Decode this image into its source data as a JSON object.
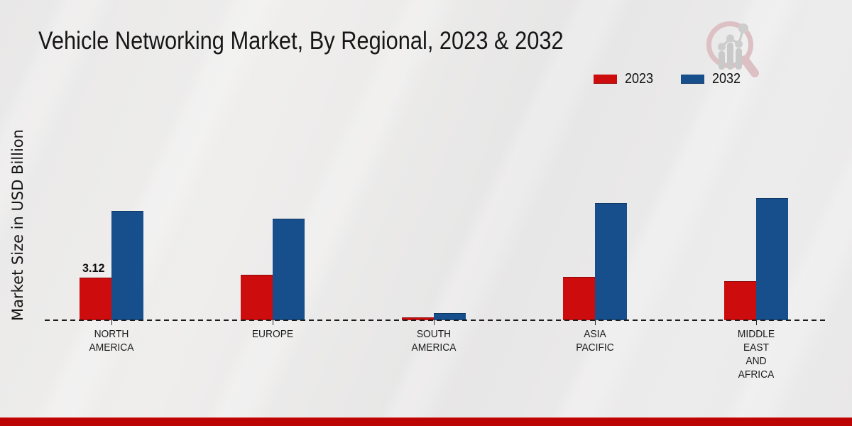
{
  "title": "Vehicle Networking Market, By Regional, 2023 & 2032",
  "y_axis_label": "Market Size in USD Billion",
  "legend": {
    "position": "top-right",
    "items": [
      {
        "label": "2023",
        "color": "#cc0c0d"
      },
      {
        "label": "2032",
        "color": "#164f8c"
      }
    ]
  },
  "chart_data": {
    "type": "bar",
    "title": "Vehicle Networking Market, By Regional, 2023 & 2032",
    "xlabel": "",
    "ylabel": "Market Size in USD Billion",
    "categories": [
      "NORTH AMERICA",
      "EUROPE",
      "SOUTH AMERICA",
      "ASIA PACIFIC",
      "MIDDLE EAST AND AFRICA"
    ],
    "category_label_lines": [
      [
        "NORTH",
        "AMERICA"
      ],
      [
        "EUROPE"
      ],
      [
        "SOUTH",
        "AMERICA"
      ],
      [
        "ASIA",
        "PACIFIC"
      ],
      [
        "MIDDLE",
        "EAST",
        "AND",
        "AFRICA"
      ]
    ],
    "series": [
      {
        "name": "2023",
        "color": "#cc0c0d",
        "values": [
          3.12,
          3.29,
          0.19,
          3.14,
          2.86
        ]
      },
      {
        "name": "2032",
        "color": "#164f8c",
        "values": [
          7.95,
          7.41,
          0.52,
          8.52,
          8.91
        ]
      }
    ],
    "bar_labels": [
      {
        "series_index": 0,
        "category_index": 0,
        "text": "3.12"
      }
    ],
    "baseline_value": 0,
    "ylim": [
      0,
      9.5
    ],
    "grid": false,
    "x_axis_style": "dashed",
    "y_ticks_visible": false,
    "legend_position": "top-right"
  },
  "watermark": {
    "icon": "magnifier-growth-chart-icon"
  },
  "footer": {
    "accent_bar_color": "#bc0404"
  },
  "colors": {
    "background": "#e9e8e8",
    "series_2023": "#cc0c0d",
    "series_2032": "#164f8c",
    "axis": "#1c1c1c",
    "text": "#161616"
  }
}
